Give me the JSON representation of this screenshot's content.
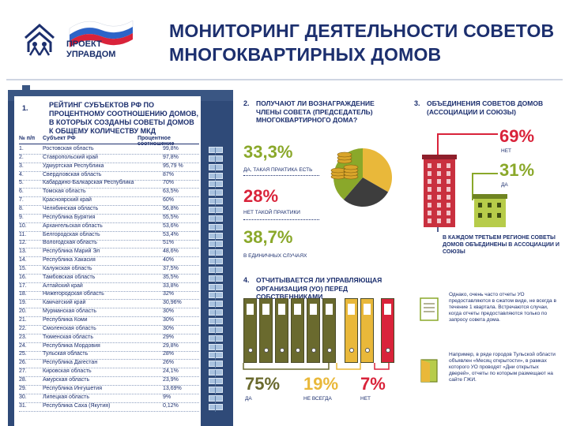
{
  "header": {
    "logo_line1": "ПРОЕКТ",
    "logo_line2": "УПРАВДОМ",
    "title_line1": "МОНИТОРИНГ ДЕЯТЕЛЬНОСТИ СОВЕТОВ",
    "title_line2": "МНОГОКВАРТИРНЫХ ДОМОВ"
  },
  "colors": {
    "navy": "#1c2f6e",
    "red": "#d9233a",
    "green": "#8aa82a",
    "olive": "#6a6a2e",
    "yellow": "#e9b83a"
  },
  "rating": {
    "number": "1.",
    "title": "РЕЙТИНГ СУБЪЕКТОВ РФ ПО ПРОЦЕНТНОМУ СООТНОШЕНИЮ ДОМОВ, В КОТОРЫХ СОЗДАНЫ СОВЕТЫ ДОМОВ К ОБЩЕМУ КОЛИЧЕСТВУ МКД",
    "col_num": "№ п/п",
    "col_subject": "Субъект РФ",
    "col_ratio": "Процентное соотношение",
    "rows": [
      {
        "n": "1.",
        "name": "Ростовская область",
        "pct": "99,8%"
      },
      {
        "n": "2.",
        "name": "Ставропольский край",
        "pct": "97,8%"
      },
      {
        "n": "3.",
        "name": "Удмуртская Республика",
        "pct": "95,79 %"
      },
      {
        "n": "4.",
        "name": "Свердловская область",
        "pct": "87%"
      },
      {
        "n": "5.",
        "name": "Кабардино-Балкарская Республика",
        "pct": "70%"
      },
      {
        "n": "6.",
        "name": "Томская область",
        "pct": "63,5%"
      },
      {
        "n": "7.",
        "name": "Красноярский край",
        "pct": "60%"
      },
      {
        "n": "8.",
        "name": "Челябинская область",
        "pct": "56,8%"
      },
      {
        "n": "9.",
        "name": "Республика Бурятия",
        "pct": "55,5%"
      },
      {
        "n": "10.",
        "name": "Архангельская область",
        "pct": "53,6%"
      },
      {
        "n": "11.",
        "name": "Белгородская область",
        "pct": "53,4%"
      },
      {
        "n": "12.",
        "name": "Вологодская область",
        "pct": "51%"
      },
      {
        "n": "13.",
        "name": "Республика Марий Эл",
        "pct": "48,6%"
      },
      {
        "n": "14.",
        "name": "Республика Хакасия",
        "pct": "40%"
      },
      {
        "n": "15.",
        "name": "Калужская область",
        "pct": "37,5%"
      },
      {
        "n": "16.",
        "name": "Тамбовская область",
        "pct": "35,5%"
      },
      {
        "n": "17.",
        "name": "Алтайский край",
        "pct": "33,8%"
      },
      {
        "n": "18.",
        "name": "Нижегородская область",
        "pct": "32%"
      },
      {
        "n": "19.",
        "name": "Камчатский край",
        "pct": "30,96%"
      },
      {
        "n": "20.",
        "name": "Мурманская область",
        "pct": "30%"
      },
      {
        "n": "21.",
        "name": "Республика Коми",
        "pct": "30%"
      },
      {
        "n": "22.",
        "name": "Смоленская область",
        "pct": "30%"
      },
      {
        "n": "23.",
        "name": "Тюменская область",
        "pct": "29%"
      },
      {
        "n": "24.",
        "name": "Республика Мордовия",
        "pct": "29,8%"
      },
      {
        "n": "25.",
        "name": "Тульская область",
        "pct": "28%"
      },
      {
        "n": "26.",
        "name": "Республика Дагестан",
        "pct": "26%"
      },
      {
        "n": "27.",
        "name": "Кировская область",
        "pct": "24,1%"
      },
      {
        "n": "28.",
        "name": "Амурская область",
        "pct": "23,9%"
      },
      {
        "n": "29.",
        "name": "Республика Ингушетия",
        "pct": "13,69%"
      },
      {
        "n": "30.",
        "name": "Липецкая область",
        "pct": "9%"
      },
      {
        "n": "31.",
        "name": "Республика Саха (Якутия)",
        "pct": "0,12%"
      }
    ]
  },
  "reward": {
    "number": "2.",
    "title": "ПОЛУЧАЮТ ЛИ ВОЗНАГРАЖДЕНИЕ ЧЛЕНЫ СОВЕТА (ПРЕДСЕДАТЕЛЬ) МНОГОКВАРТИРНОГО ДОМА?",
    "items": [
      {
        "value": "33,3%",
        "label": "ДА, ТАКАЯ ПРАКТИКА ЕСТЬ"
      },
      {
        "value": "28%",
        "label": "НЕТ ТАКОЙ ПРАКТИКИ"
      },
      {
        "value": "38,7%",
        "label": "В ЕДИНИЧНЫХ СЛУЧАЯХ"
      }
    ],
    "pie_values": [
      33.3,
      28,
      38.7
    ]
  },
  "assoc": {
    "number": "3.",
    "title": "ОБЪЕДИНЕНИЯ СОВЕТОВ ДОМОВ (АССОЦИАЦИИ И СОЮЗЫ)",
    "no_value": "69%",
    "no_label": "НЕТ",
    "yes_value": "31%",
    "yes_label": "ДА",
    "note": "В КАЖДОМ ТРЕТЬЕМ РЕГИОНЕ СОВЕТЫ ДОМОВ ОБЪЕДИНЕНЫ В АССОЦИАЦИИ И СОЮЗЫ"
  },
  "report": {
    "number": "4.",
    "title": "ОТЧИТЫВАЕТСЯ ЛИ УПРАВЛЯЮЩАЯ ОРГАНИЗАЦИЯ (УО) ПЕРЕД СОБСТВЕННИКАМИ",
    "items": [
      {
        "value": "75%",
        "label": "ДА"
      },
      {
        "value": "19%",
        "label": "НЕ ВСЕГДА"
      },
      {
        "value": "7%",
        "label": "НЕТ"
      }
    ],
    "note1": "Однако, очень часто отчеты УО предоставляются в сжатом виде, не всегда в течение 1 квартала. Встречаются случаи, когда отчеты предоставляются только по запросу совета дома.",
    "note2": "Например, в ряде городов Тульской области объявлен «Месяц открытости», в рамках которого УО проводят «Дни открытых дверей», отчеты по которым размещают на сайте ГЖИ."
  }
}
